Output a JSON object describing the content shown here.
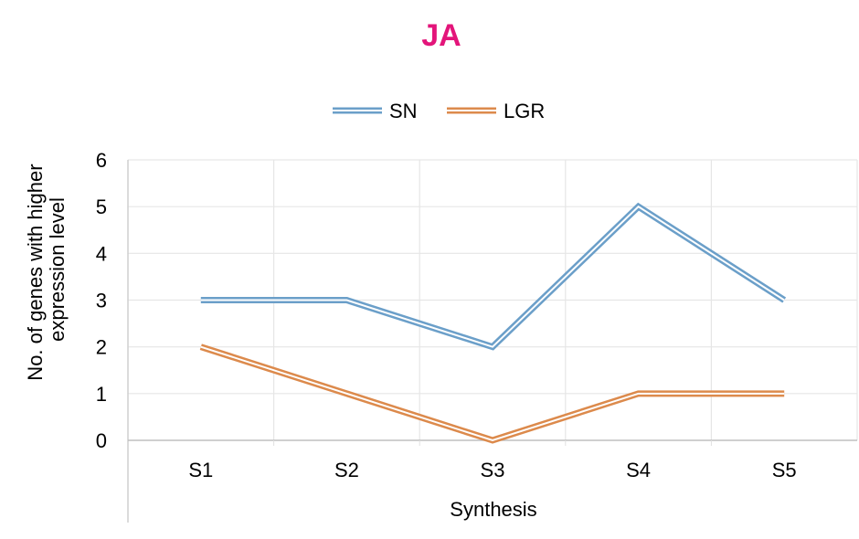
{
  "chart_data": {
    "type": "line",
    "title": "JA",
    "title_color": "#e3157a",
    "xlabel": "Synthesis",
    "ylabel": "No. of genes with higher expression level",
    "ylabel_lines": [
      "No. of genes with higher",
      "expression level"
    ],
    "categories": [
      "S1",
      "S2",
      "S3",
      "S4",
      "S5"
    ],
    "ylim": [
      0,
      6
    ],
    "yticks": [
      0,
      1,
      2,
      3,
      4,
      5,
      6
    ],
    "grid": true,
    "legend_position": "top-center",
    "series": [
      {
        "name": "SN",
        "values": [
          3,
          3,
          2,
          5,
          3
        ],
        "color": "#6b9fc9"
      },
      {
        "name": "LGR",
        "values": [
          2,
          1,
          0,
          1,
          1
        ],
        "color": "#dc8a4c"
      }
    ]
  }
}
